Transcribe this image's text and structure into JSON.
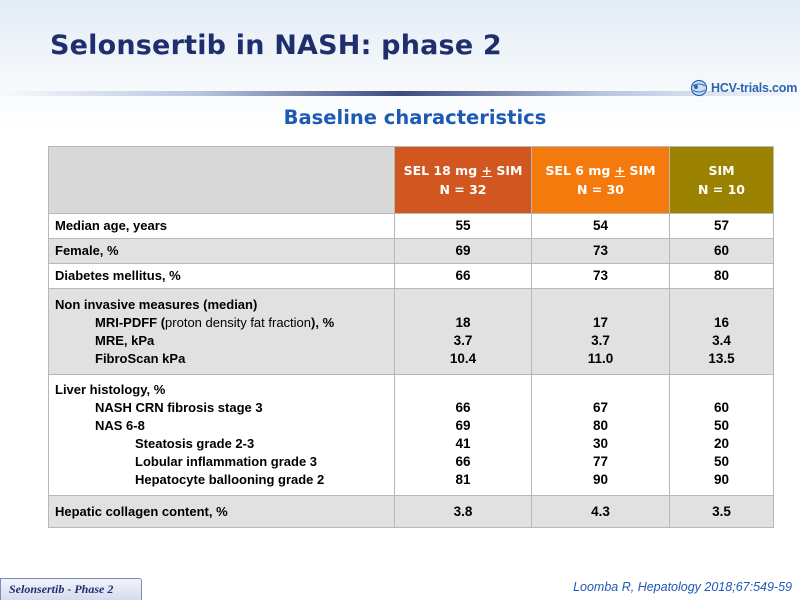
{
  "slide": {
    "title": "Selonsertib in NASH: phase 2",
    "subtitle": "Baseline characteristics",
    "logo_text": "HCV-trials.com",
    "footer_tab": "Selonsertib - Phase 2",
    "citation": "Loomba R, Hepatology 2018;67:549-59"
  },
  "colors": {
    "title": "#1f2f6e",
    "subtitle": "#1d5ab4",
    "sel18": "#d2561f",
    "sel6": "#f57a0d",
    "sim": "#9b8200",
    "header_blank": "#d9d9d9",
    "row_grey": "#e1e1e1"
  },
  "table": {
    "columns": [
      {
        "line1_pre": "SEL 18 mg ",
        "line1_u": "+",
        "line1_post": " SIM",
        "line2": "N = 32"
      },
      {
        "line1_pre": "SEL 6 mg ",
        "line1_u": "+",
        "line1_post": " SIM",
        "line2": "N = 30"
      },
      {
        "line1_pre": "SIM",
        "line1_u": "",
        "line1_post": "",
        "line2": "N = 10"
      }
    ],
    "median_age": {
      "label": "Median age, years",
      "values": [
        "55",
        "54",
        "57"
      ]
    },
    "female": {
      "label": "Female, %",
      "values": [
        "69",
        "73",
        "60"
      ]
    },
    "diabetes": {
      "label": "Diabetes mellitus, %",
      "values": [
        "66",
        "73",
        "80"
      ]
    },
    "non_invasive": {
      "label": "Non invasive measures (median)",
      "mri_pdff": {
        "label_pre": "MRI-PDFF (",
        "label_paren": "proton density fat fraction",
        "label_post": "), %",
        "values": [
          "18",
          "17",
          "16"
        ]
      },
      "mre": {
        "label": "MRE, kPa",
        "values": [
          "3.7",
          "3.7",
          "3.4"
        ]
      },
      "fibroscan": {
        "label": "FibroScan kPa",
        "values": [
          "10.4",
          "11.0",
          "13.5"
        ]
      }
    },
    "liver_histology": {
      "label": "Liver histology, %",
      "nash_crn": {
        "label": "NASH CRN fibrosis stage 3",
        "values": [
          "66",
          "67",
          "60"
        ]
      },
      "nas": {
        "label": "NAS 6-8",
        "values": [
          "69",
          "80",
          "50"
        ]
      },
      "steatosis": {
        "label": "Steatosis grade 2-3",
        "values": [
          "41",
          "30",
          "20"
        ]
      },
      "lobular": {
        "label": "Lobular inflammation grade 3",
        "values": [
          "66",
          "77",
          "50"
        ]
      },
      "ballooning": {
        "label": "Hepatocyte ballooning grade 2",
        "values": [
          "81",
          "90",
          "90"
        ]
      }
    },
    "collagen": {
      "label": "Hepatic collagen content, %",
      "values": [
        "3.8",
        "4.3",
        "3.5"
      ]
    }
  }
}
